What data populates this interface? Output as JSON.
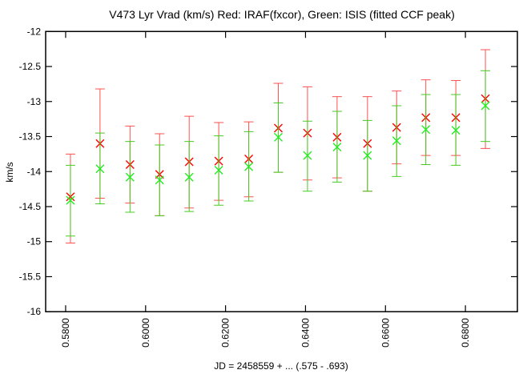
{
  "chart_data": {
    "type": "scatter",
    "title": "V473 Lyr Vrad (km/s) Red: IRAF(fxcor), Green: ISIS (fitted CCF peak)",
    "xlabel": "JD = 2458559 + ... (.575 - .693)",
    "ylabel": "km/s",
    "xlim": [
      0.575,
      0.693
    ],
    "ylim": [
      -16,
      -12
    ],
    "x_ticks": [
      "0.5800",
      "0.6000",
      "0.6200",
      "0.6400",
      "0.6600",
      "0.6800"
    ],
    "x_tick_values": [
      0.58,
      0.6,
      0.62,
      0.64,
      0.66,
      0.68
    ],
    "y_ticks": [
      "-12",
      "-12.5",
      "-13",
      "-13.5",
      "-14",
      "-14.5",
      "-15",
      "-15.5",
      "-16"
    ],
    "y_tick_values": [
      -12,
      -12.5,
      -13,
      -13.5,
      -14,
      -14.5,
      -15,
      -15.5,
      -16
    ],
    "grid": false,
    "marker": "x",
    "x": [
      0.5812,
      0.5886,
      0.5961,
      0.6035,
      0.6109,
      0.6183,
      0.6258,
      0.6332,
      0.6405,
      0.6479,
      0.6555,
      0.6628,
      0.6701,
      0.6776,
      0.685
    ],
    "series": [
      {
        "color": "#ff0000",
        "bar_color": "#ff5050",
        "values": [
          -14.36,
          -13.6,
          -13.9,
          -14.04,
          -13.86,
          -13.85,
          -13.82,
          -13.38,
          -13.45,
          -13.51,
          -13.6,
          -13.37,
          -13.23,
          -13.23,
          -12.96
        ],
        "err_high": [
          -13.75,
          -12.82,
          -13.35,
          -13.46,
          -13.21,
          -13.3,
          -13.29,
          -12.74,
          -12.79,
          -12.93,
          -12.93,
          -12.85,
          -12.69,
          -12.7,
          -12.26
        ],
        "err_low": [
          -15.02,
          -14.38,
          -14.45,
          -14.63,
          -14.52,
          -14.41,
          -14.36,
          -14.01,
          -14.12,
          -14.09,
          -14.28,
          -13.89,
          -13.77,
          -13.77,
          -13.67
        ]
      },
      {
        "color": "#22ee22",
        "bar_color": "#44cc22",
        "values": [
          -14.41,
          -13.96,
          -14.08,
          -14.12,
          -14.08,
          -13.98,
          -13.93,
          -13.51,
          -13.77,
          -13.65,
          -13.77,
          -13.56,
          -13.4,
          -13.41,
          -13.06
        ],
        "err_high": [
          -13.91,
          -13.45,
          -13.57,
          -13.62,
          -13.57,
          -13.49,
          -13.43,
          -13.02,
          -13.28,
          -13.14,
          -13.27,
          -13.06,
          -12.9,
          -12.9,
          -12.56
        ],
        "err_low": [
          -14.92,
          -14.46,
          -14.58,
          -14.63,
          -14.57,
          -14.48,
          -14.42,
          -14.01,
          -14.28,
          -14.15,
          -14.28,
          -14.07,
          -13.9,
          -13.91,
          -13.57
        ]
      }
    ]
  }
}
